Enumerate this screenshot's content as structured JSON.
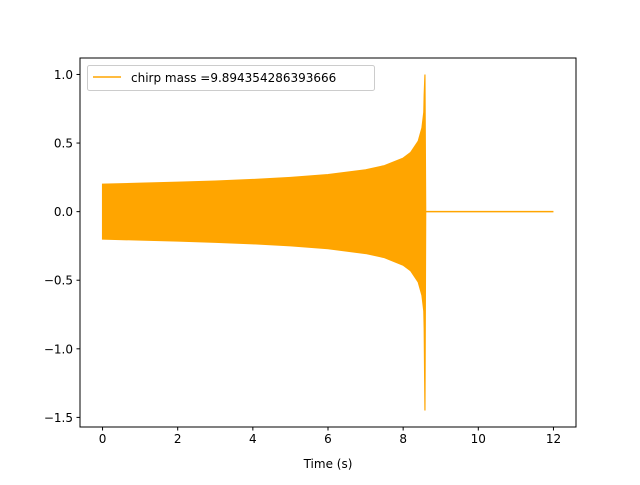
{
  "chart_data": {
    "type": "line",
    "title": "",
    "xlabel": "Time (s)",
    "ylabel": "",
    "xlim": [
      -0.6,
      12.6
    ],
    "ylim": [
      -1.57,
      1.12
    ],
    "xticks": [
      0,
      2,
      4,
      6,
      8,
      10,
      12
    ],
    "xtick_labels": [
      "0",
      "2",
      "4",
      "6",
      "8",
      "10",
      "12"
    ],
    "yticks": [
      1.0,
      0.5,
      0.0,
      -0.5,
      -1.0,
      -1.5
    ],
    "ytick_labels": [
      "1.0",
      "0.5",
      "0.0",
      "−0.5",
      "−1.0",
      "−1.5"
    ],
    "grid": false,
    "legend_position": "top-left",
    "series": [
      {
        "name": "chirp mass =9.894354286393666",
        "color": "#ffa500",
        "description_type": "oscillating chirp envelope",
        "envelope_t": [
          0,
          1,
          2,
          3,
          4,
          5,
          6,
          7,
          7.5,
          8,
          8.2,
          8.4,
          8.5,
          8.55
        ],
        "envelope_amplitude": [
          0.2,
          0.207,
          0.214,
          0.223,
          0.234,
          0.249,
          0.27,
          0.305,
          0.335,
          0.39,
          0.431,
          0.513,
          0.61,
          0.725
        ],
        "peak_t": 8.58,
        "peak_max": 1.0,
        "peak_min": -1.45,
        "ringdown_t": [
          8.6,
          12.0
        ],
        "ringdown_value": 0.0
      }
    ]
  }
}
